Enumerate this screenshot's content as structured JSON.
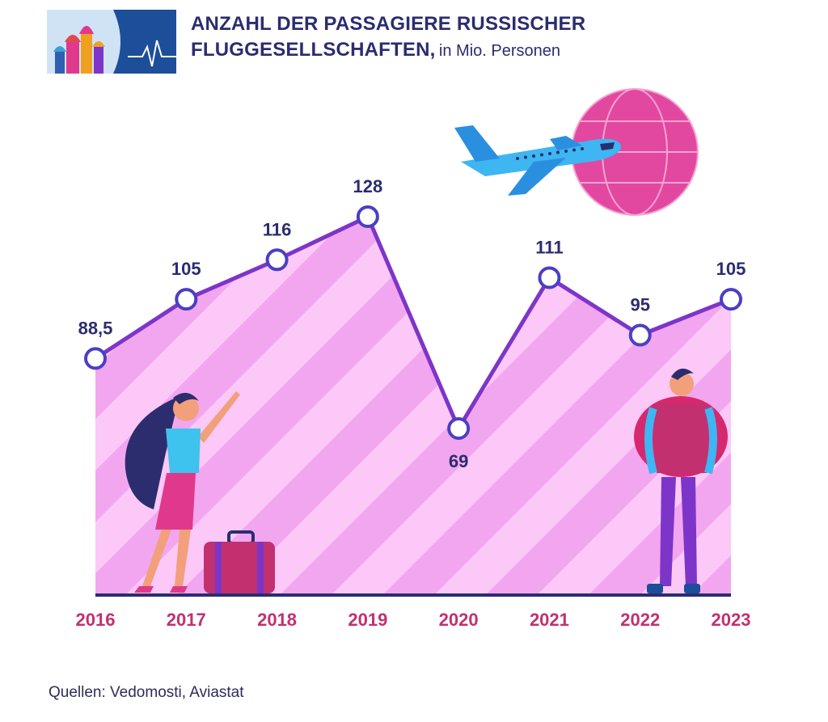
{
  "title": {
    "bold": "ANZAHL DER PASSAGIERE RUSSISCHER",
    "bold2": "FLUGGESELLSCHAFTEN,",
    "sub": "in Mio. Personen"
  },
  "source": "Quellen: Vedomosti, Aviastat",
  "colors": {
    "line": "#7d35c9",
    "marker_stroke": "#4b3fc2",
    "area": "#f3a6f0",
    "stripe": "#fbc8f8",
    "axis": "#2b2d6e",
    "value_text": "#2b2d6e",
    "year_text": "#c2306f"
  },
  "chart_data": {
    "type": "area",
    "title": "ANZAHL DER PASSAGIERE RUSSISCHER FLUGGESELLSCHAFTEN, in Mio. Personen",
    "xlabel": "",
    "ylabel": "in Mio. Personen",
    "categories": [
      "2016",
      "2017",
      "2018",
      "2019",
      "2020",
      "2021",
      "2022",
      "2023"
    ],
    "values": [
      88.5,
      105,
      116,
      128,
      69,
      111,
      95,
      105
    ],
    "labels": [
      "88,5",
      "105",
      "116",
      "128",
      "69",
      "111",
      "95",
      "105"
    ],
    "ylim": [
      0,
      128
    ],
    "grid": false,
    "legend": "none"
  }
}
